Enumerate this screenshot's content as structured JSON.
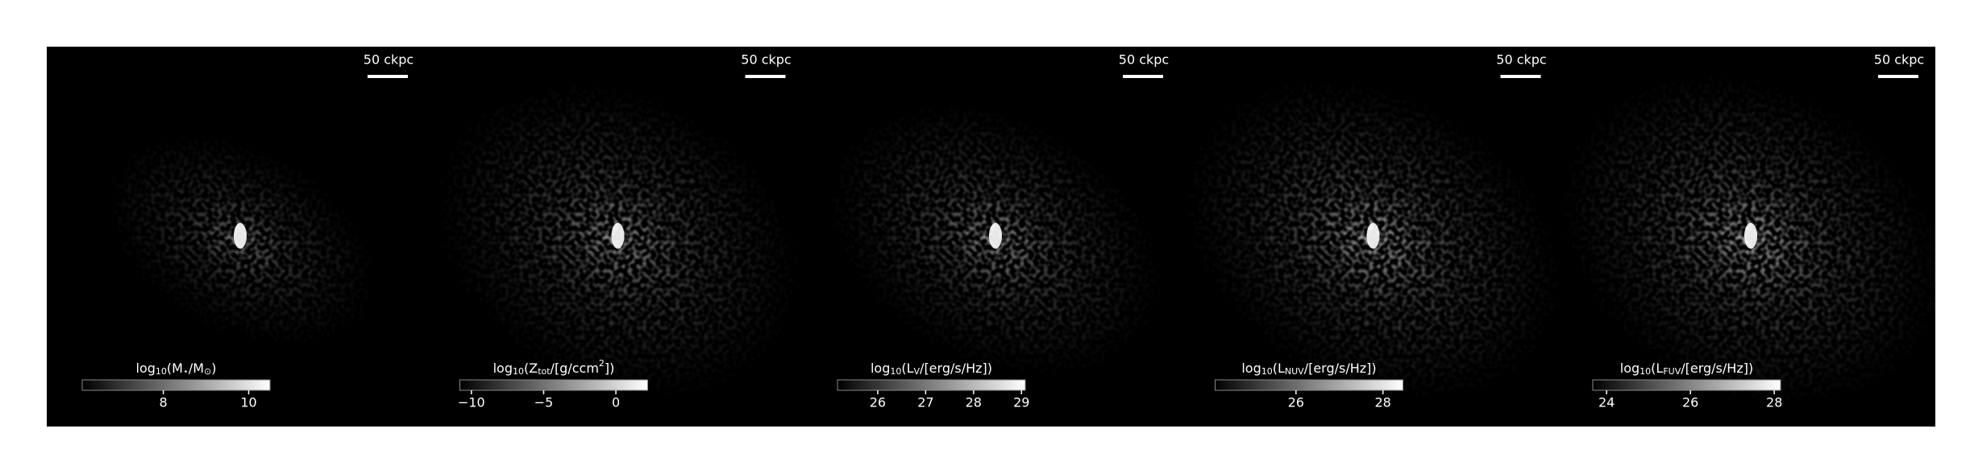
{
  "panels": [
    {
      "scale_label": "50 ckpc",
      "colorbar": {
        "label": [
          {
            "text": "log"
          },
          {
            "sub": "10"
          },
          {
            "text": "(M"
          },
          {
            "sub": "⋆"
          },
          {
            "text": "/M"
          },
          {
            "sub": "⊙"
          },
          {
            "text": ")"
          }
        ],
        "clim": [
          6.1,
          10.5
        ],
        "ticks": [
          8,
          10
        ]
      }
    },
    {
      "scale_label": "50 ckpc",
      "colorbar": {
        "label": [
          {
            "text": "log"
          },
          {
            "sub": "10"
          },
          {
            "text": "(Z"
          },
          {
            "sub": "tot"
          },
          {
            "text": "/[g/ccm"
          },
          {
            "sup": "2"
          },
          {
            "text": "])"
          }
        ],
        "clim": [
          -10.8,
          2.2
        ],
        "ticks": [
          {
            "value": -10,
            "label": "−10"
          },
          {
            "value": -5,
            "label": "−5"
          },
          0
        ]
      }
    },
    {
      "scale_label": "50 ckpc",
      "colorbar": {
        "label": [
          {
            "text": "log"
          },
          {
            "sub": "10"
          },
          {
            "text": "(L"
          },
          {
            "sub": "V"
          },
          {
            "text": "/[erg/s/Hz])"
          }
        ],
        "clim": [
          25.16,
          29.08
        ],
        "ticks": [
          26,
          27,
          28,
          29
        ]
      }
    },
    {
      "scale_label": "50 ckpc",
      "colorbar": {
        "label": [
          {
            "text": "log"
          },
          {
            "sub": "10"
          },
          {
            "text": "(L"
          },
          {
            "sub": "NUV"
          },
          {
            "text": "/[erg/s/Hz])"
          }
        ],
        "clim": [
          24.14,
          28.46
        ],
        "ticks": [
          26,
          28
        ]
      }
    },
    {
      "scale_label": "50 ckpc",
      "colorbar": {
        "label": [
          {
            "text": "log"
          },
          {
            "sub": "10"
          },
          {
            "text": "(L"
          },
          {
            "sub": "FUV"
          },
          {
            "text": "/[erg/s/Hz])"
          }
        ],
        "clim": [
          23.67,
          28.15
        ],
        "ticks": [
          24,
          26,
          28
        ]
      }
    }
  ]
}
